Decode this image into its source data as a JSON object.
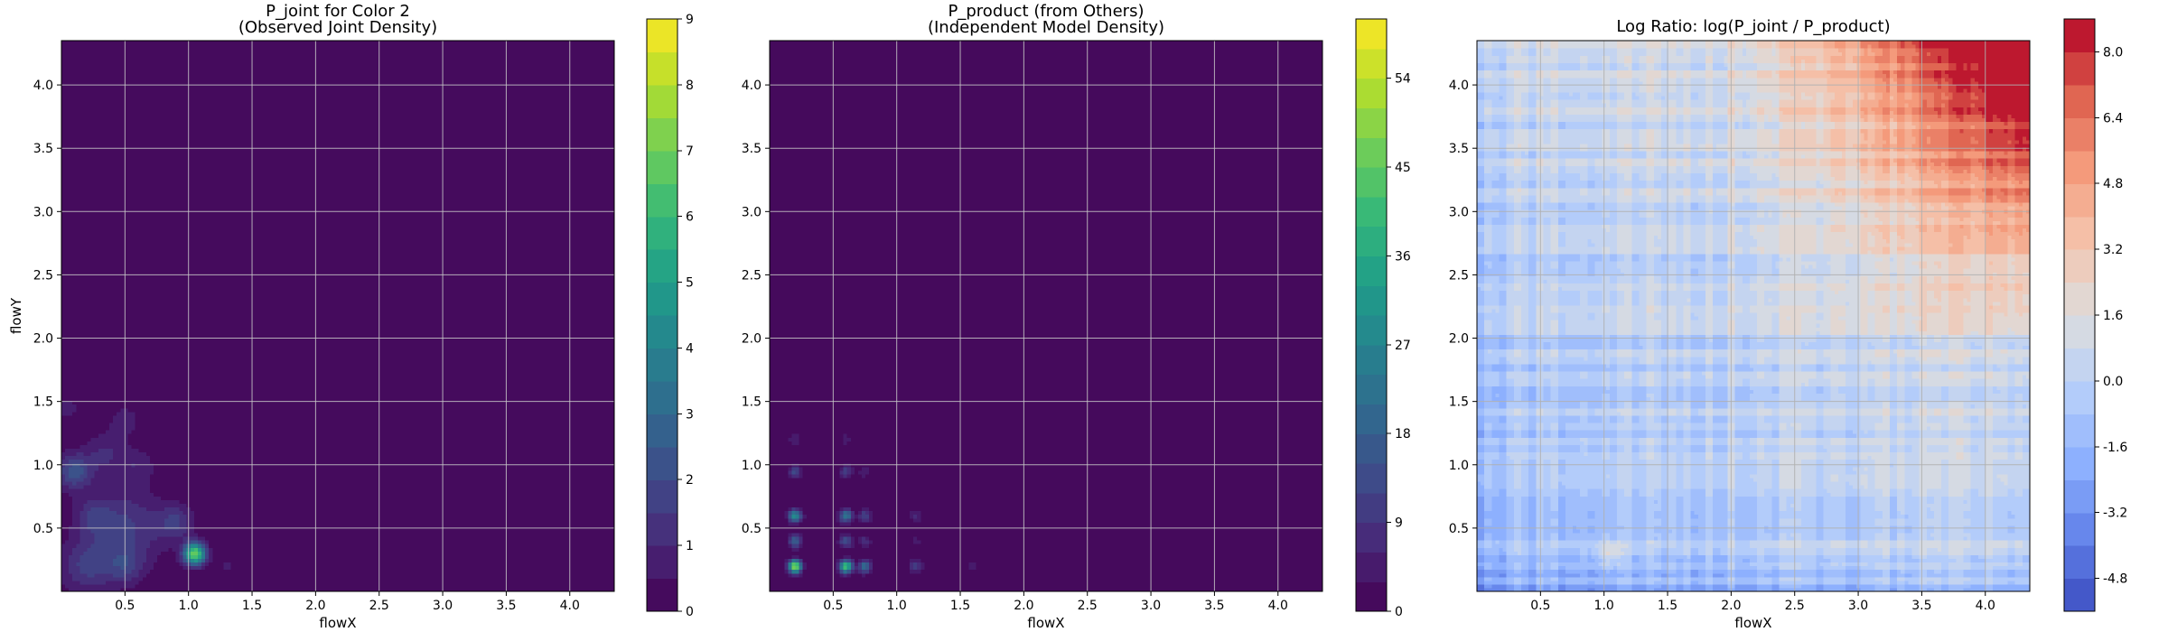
{
  "chart_data": [
    {
      "type": "heatmap",
      "title": "P_joint for Color 2",
      "subtitle": "(Observed Joint Density)",
      "xlabel": "flowX",
      "ylabel": "flowY",
      "xlim": [
        0.0,
        4.35
      ],
      "ylim": [
        0.0,
        4.35
      ],
      "xticks": [
        0.5,
        1.0,
        1.5,
        2.0,
        2.5,
        3.0,
        3.5,
        4.0
      ],
      "yticks": [
        0.5,
        1.0,
        1.5,
        2.0,
        2.5,
        3.0,
        3.5,
        4.0
      ],
      "grid": true,
      "colormap": "viridis",
      "colorbar": {
        "min": 0,
        "max": 9,
        "ticks": [
          0,
          1,
          2,
          3,
          4,
          5,
          6,
          7,
          8,
          9
        ],
        "levels": 18
      },
      "background_value": 0,
      "hotspots": [
        {
          "x": 1.05,
          "y": 0.3,
          "value": 7.0,
          "spread": 0.06
        },
        {
          "x": 0.1,
          "y": 0.95,
          "value": 2.2,
          "spread": 0.1
        },
        {
          "x": 0.5,
          "y": 0.5,
          "value": 1.6,
          "spread": 0.22
        },
        {
          "x": 0.2,
          "y": 0.2,
          "value": 1.5,
          "spread": 0.15
        },
        {
          "x": 0.5,
          "y": 0.2,
          "value": 1.2,
          "spread": 0.1
        },
        {
          "x": 0.9,
          "y": 0.55,
          "value": 1.4,
          "spread": 0.1
        },
        {
          "x": 0.35,
          "y": 1.1,
          "value": 1.0,
          "spread": 0.12
        },
        {
          "x": 0.6,
          "y": 1.0,
          "value": 0.8,
          "spread": 0.1
        },
        {
          "x": 0.05,
          "y": 1.45,
          "value": 0.8,
          "spread": 0.06
        },
        {
          "x": 0.5,
          "y": 1.35,
          "value": 0.9,
          "spread": 0.08
        },
        {
          "x": 1.25,
          "y": 1.1,
          "value": 0.5,
          "spread": 0.05
        },
        {
          "x": 1.5,
          "y": 0.45,
          "value": 0.5,
          "spread": 0.06
        },
        {
          "x": 1.3,
          "y": 0.2,
          "value": 0.6,
          "spread": 0.06
        },
        {
          "x": 0.25,
          "y": 0.6,
          "value": 1.0,
          "spread": 0.1
        }
      ]
    },
    {
      "type": "heatmap",
      "title": "P_product (from Others)",
      "subtitle": "(Independent Model Density)",
      "xlabel": "flowX",
      "ylabel": "",
      "xlim": [
        0.0,
        4.35
      ],
      "ylim": [
        0.0,
        4.35
      ],
      "xticks": [
        0.5,
        1.0,
        1.5,
        2.0,
        2.5,
        3.0,
        3.5,
        4.0
      ],
      "yticks": [
        0.5,
        1.0,
        1.5,
        2.0,
        2.5,
        3.0,
        3.5,
        4.0
      ],
      "grid": true,
      "colormap": "viridis",
      "colorbar": {
        "min": 0,
        "max": 60,
        "ticks": [
          0,
          9,
          18,
          27,
          36,
          45,
          54
        ],
        "levels": 20
      },
      "background_value": 0,
      "grid_peaks": {
        "x": [
          0.2,
          0.6,
          0.75,
          1.15,
          1.6
        ],
        "y": [
          0.2,
          0.6,
          0.4,
          0.95,
          1.2
        ],
        "x_weights": [
          1.0,
          0.8,
          0.4,
          0.2,
          0.08
        ],
        "y_weights": [
          1.0,
          0.55,
          0.35,
          0.25,
          0.1
        ],
        "peak_value": 52,
        "spread": 0.035
      }
    },
    {
      "type": "heatmap",
      "title": "Log Ratio: log(P_joint / P_product)",
      "subtitle": "",
      "xlabel": "flowX",
      "ylabel": "",
      "xlim": [
        0.0,
        4.35
      ],
      "ylim": [
        0.0,
        4.35
      ],
      "xticks": [
        0.5,
        1.0,
        1.5,
        2.0,
        2.5,
        3.0,
        3.5,
        4.0
      ],
      "yticks": [
        0.5,
        1.0,
        1.5,
        2.0,
        2.5,
        3.0,
        3.5,
        4.0
      ],
      "grid": true,
      "colormap": "coolwarm",
      "colorbar": {
        "min": -5.6,
        "max": 8.8,
        "ticks": [
          -4.8,
          -3.2,
          -1.6,
          0.0,
          1.6,
          3.2,
          4.8,
          6.4,
          8.0
        ],
        "levels": 18
      },
      "trend": "log ratio rises from about -1 near the origin to about 8.8 at the top-right corner"
    }
  ]
}
